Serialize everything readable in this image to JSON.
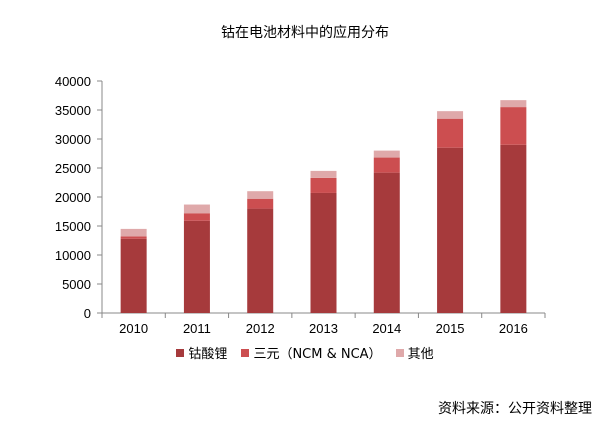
{
  "chart_data": {
    "type": "bar",
    "stacked": true,
    "title": "钴在电池材料中的应用分布",
    "categories": [
      "2010",
      "2011",
      "2012",
      "2013",
      "2014",
      "2015",
      "2016"
    ],
    "series": [
      {
        "name": "钴酸锂",
        "color": "#a63a3c",
        "values": [
          12800,
          15900,
          18000,
          20700,
          24200,
          28500,
          29000
        ]
      },
      {
        "name": "三元（NCM & NCA）",
        "color": "#cc4e50",
        "values": [
          400,
          1300,
          1700,
          2600,
          2600,
          5000,
          6500
        ]
      },
      {
        "name": "其他",
        "color": "#dfa9aa",
        "values": [
          1300,
          1500,
          1300,
          1200,
          1200,
          1300,
          1200
        ]
      }
    ],
    "ylim": [
      0,
      40000
    ],
    "yticks": [
      0,
      5000,
      10000,
      15000,
      20000,
      25000,
      30000,
      35000,
      40000
    ],
    "xlabel": "",
    "ylabel": "",
    "grid": false,
    "legend_position": "bottom"
  },
  "source_note": "资料来源：公开资料整理"
}
